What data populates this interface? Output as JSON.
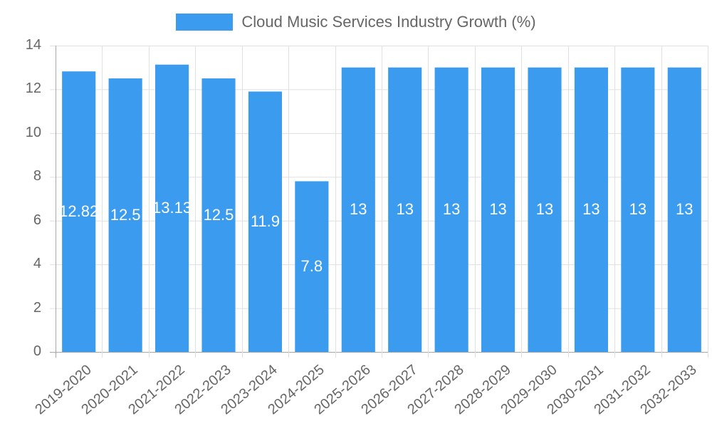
{
  "chart_data": {
    "type": "bar",
    "title": "",
    "legend": [
      "Cloud Music Services Industry Growth (%)"
    ],
    "legend_position": "top",
    "xlabel": "",
    "ylabel": "",
    "ylim": [
      0,
      14
    ],
    "yticks": [
      0,
      2,
      4,
      6,
      8,
      10,
      12,
      14
    ],
    "grid": true,
    "categories": [
      "2019-2020",
      "2020-2021",
      "2021-2022",
      "2022-2023",
      "2023-2024",
      "2024-2025",
      "2025-2026",
      "2026-2027",
      "2027-2028",
      "2028-2029",
      "2029-2030",
      "2030-2031",
      "2031-2032",
      "2032-2033"
    ],
    "series": [
      {
        "name": "Cloud Music Services Industry Growth (%)",
        "color": "#3a9bef",
        "values": [
          12.82,
          12.5,
          13.13,
          12.5,
          11.9,
          7.8,
          13,
          13,
          13,
          13,
          13,
          13,
          13,
          13
        ],
        "labels": [
          "12.82",
          "12.5",
          "13.13",
          "12.5",
          "11.9",
          "7.8",
          "13",
          "13",
          "13",
          "13",
          "13",
          "13",
          "13",
          "13"
        ]
      }
    ]
  },
  "legend": {
    "label": "Cloud Music Services Industry Growth (%)",
    "color": "#3a9bef"
  },
  "colors": {
    "bar": "#3a9bef",
    "grid": "#e0e0e0",
    "axis": "#a8a8a8",
    "text": "#666666"
  }
}
